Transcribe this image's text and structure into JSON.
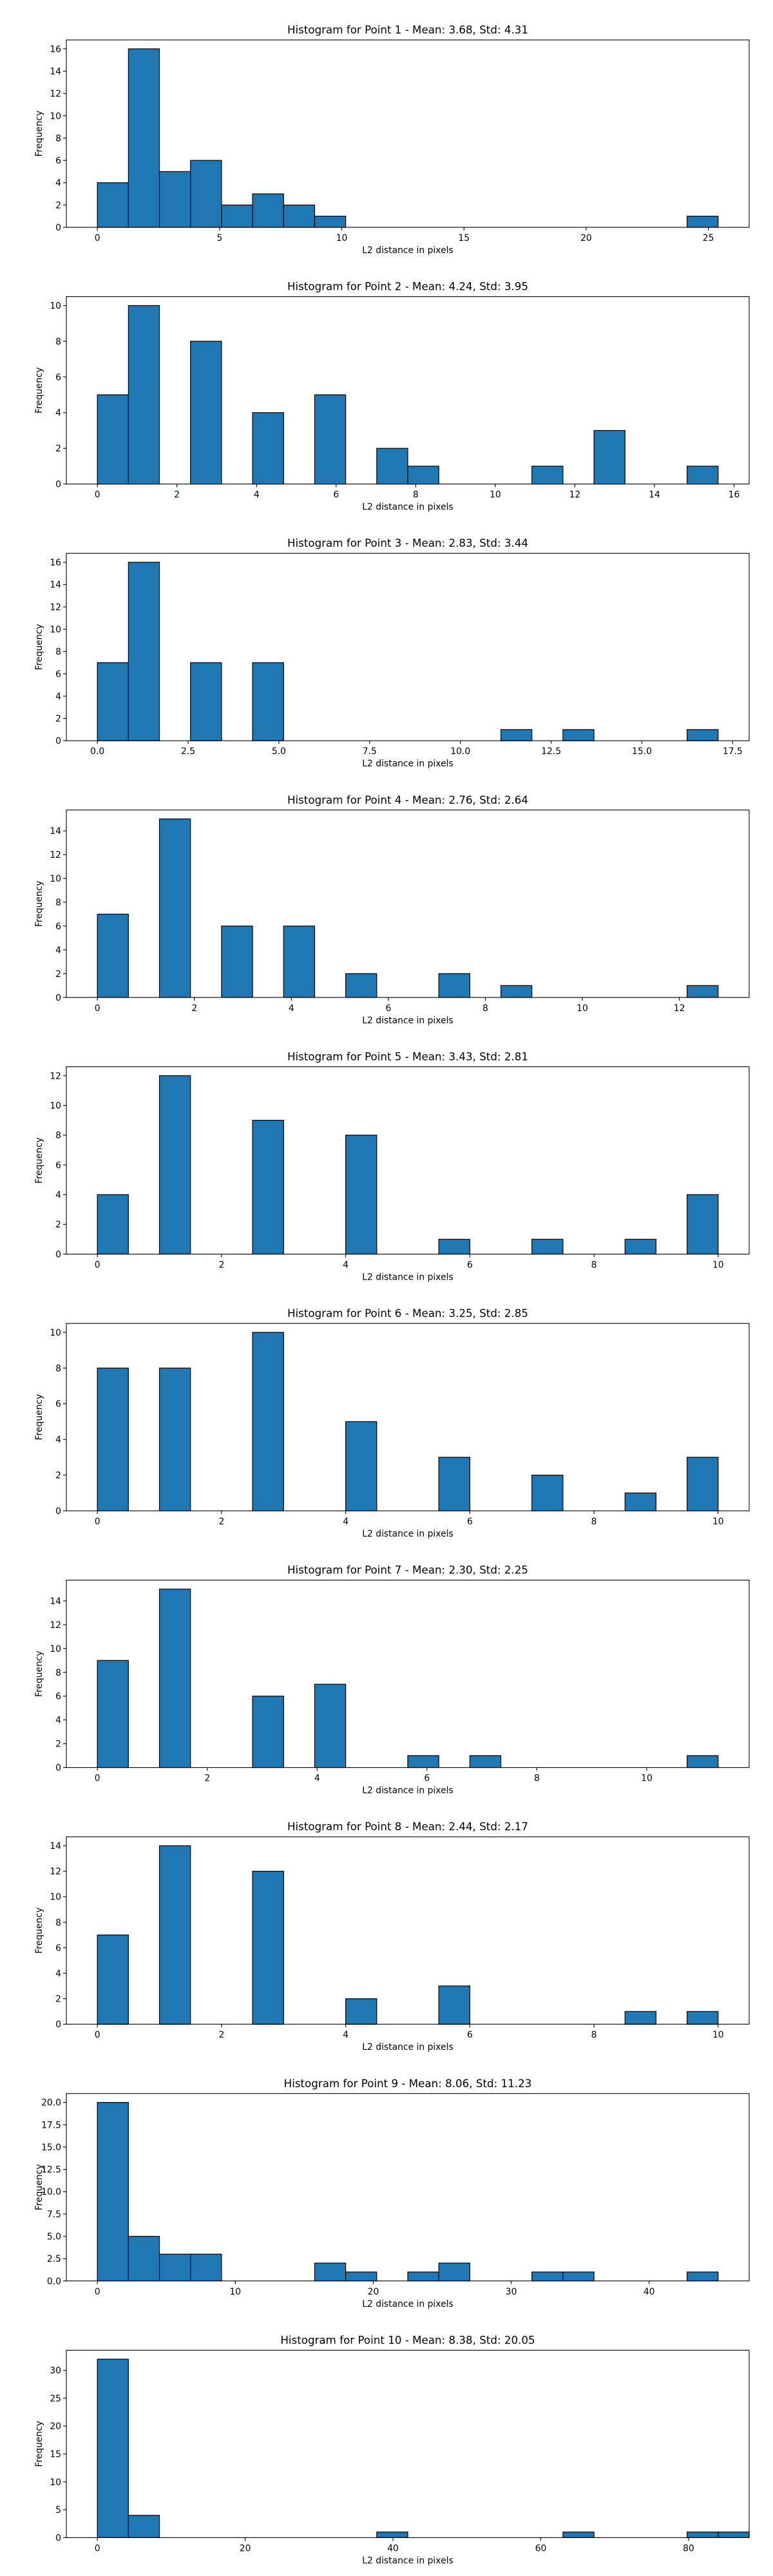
{
  "chart_data": [
    {
      "type": "bar",
      "title": "Histogram for Point 1 - Mean: 3.68, Std: 4.31",
      "xlabel": "L2 distance in pixels",
      "ylabel": "Frequency",
      "bin_width": 1.27,
      "xlim": [
        -1.27,
        26.67
      ],
      "ylim": [
        0,
        16.8
      ],
      "xticks": [
        0,
        5,
        10,
        15,
        20,
        25
      ],
      "yticks": [
        0,
        2,
        4,
        6,
        8,
        10,
        12,
        14,
        16
      ],
      "bins": [
        {
          "x0": 0.0,
          "count": 4
        },
        {
          "x0": 1.27,
          "count": 16
        },
        {
          "x0": 2.54,
          "count": 5
        },
        {
          "x0": 3.81,
          "count": 6
        },
        {
          "x0": 5.08,
          "count": 2
        },
        {
          "x0": 6.35,
          "count": 3
        },
        {
          "x0": 7.62,
          "count": 2
        },
        {
          "x0": 8.89,
          "count": 1
        },
        {
          "x0": 24.13,
          "count": 1
        }
      ]
    },
    {
      "type": "bar",
      "title": "Histogram for Point 2 - Mean: 4.24, Std: 3.95",
      "xlabel": "L2 distance in pixels",
      "ylabel": "Frequency",
      "bin_width": 0.78,
      "xlim": [
        -0.78,
        16.38
      ],
      "ylim": [
        0,
        10.5
      ],
      "xticks": [
        0,
        2,
        4,
        6,
        8,
        10,
        12,
        14,
        16
      ],
      "yticks": [
        0,
        2,
        4,
        6,
        8,
        10
      ],
      "bins": [
        {
          "x0": 0.0,
          "count": 5
        },
        {
          "x0": 0.78,
          "count": 10
        },
        {
          "x0": 2.34,
          "count": 8
        },
        {
          "x0": 3.9,
          "count": 4
        },
        {
          "x0": 5.46,
          "count": 5
        },
        {
          "x0": 7.02,
          "count": 2
        },
        {
          "x0": 7.8,
          "count": 1
        },
        {
          "x0": 10.92,
          "count": 1
        },
        {
          "x0": 12.48,
          "count": 3
        },
        {
          "x0": 14.82,
          "count": 1
        }
      ]
    },
    {
      "type": "bar",
      "title": "Histogram for Point 3 - Mean: 2.83, Std: 3.44",
      "xlabel": "L2 distance in pixels",
      "ylabel": "Frequency",
      "bin_width": 0.855,
      "xlim": [
        -0.855,
        17.955
      ],
      "ylim": [
        0,
        16.8
      ],
      "xticks": [
        0.0,
        2.5,
        5.0,
        7.5,
        10.0,
        12.5,
        15.0,
        17.5
      ],
      "xtick_labels": [
        "0.0",
        "2.5",
        "5.0",
        "7.5",
        "10.0",
        "12.5",
        "15.0",
        "17.5"
      ],
      "yticks": [
        0,
        2,
        4,
        6,
        8,
        10,
        12,
        14,
        16
      ],
      "bins": [
        {
          "x0": 0.0,
          "count": 7
        },
        {
          "x0": 0.855,
          "count": 16
        },
        {
          "x0": 2.565,
          "count": 7
        },
        {
          "x0": 4.275,
          "count": 7
        },
        {
          "x0": 11.115,
          "count": 1
        },
        {
          "x0": 12.825,
          "count": 1
        },
        {
          "x0": 16.245,
          "count": 1
        }
      ]
    },
    {
      "type": "bar",
      "title": "Histogram for Point 4 - Mean: 2.76, Std: 2.64",
      "xlabel": "L2 distance in pixels",
      "ylabel": "Frequency",
      "bin_width": 0.64,
      "xlim": [
        -0.64,
        13.44
      ],
      "ylim": [
        0,
        15.75
      ],
      "xticks": [
        0,
        2,
        4,
        6,
        8,
        10,
        12
      ],
      "yticks": [
        0,
        2,
        4,
        6,
        8,
        10,
        12,
        14
      ],
      "bins": [
        {
          "x0": 0.0,
          "count": 7
        },
        {
          "x0": 1.28,
          "count": 15
        },
        {
          "x0": 2.56,
          "count": 6
        },
        {
          "x0": 3.84,
          "count": 6
        },
        {
          "x0": 5.12,
          "count": 2
        },
        {
          "x0": 7.04,
          "count": 2
        },
        {
          "x0": 8.32,
          "count": 1
        },
        {
          "x0": 12.16,
          "count": 1
        }
      ]
    },
    {
      "type": "bar",
      "title": "Histogram for Point 5 - Mean: 3.43, Std: 2.81",
      "xlabel": "L2 distance in pixels",
      "ylabel": "Frequency",
      "bin_width": 0.5,
      "xlim": [
        -0.5,
        10.5
      ],
      "ylim": [
        0,
        12.6
      ],
      "xticks": [
        0,
        2,
        4,
        6,
        8,
        10
      ],
      "yticks": [
        0,
        2,
        4,
        6,
        8,
        10,
        12
      ],
      "bins": [
        {
          "x0": 0.0,
          "count": 4
        },
        {
          "x0": 1.0,
          "count": 12
        },
        {
          "x0": 2.5,
          "count": 9
        },
        {
          "x0": 4.0,
          "count": 8
        },
        {
          "x0": 5.5,
          "count": 1
        },
        {
          "x0": 7.0,
          "count": 1
        },
        {
          "x0": 8.5,
          "count": 1
        },
        {
          "x0": 9.5,
          "count": 4
        }
      ]
    },
    {
      "type": "bar",
      "title": "Histogram for Point 6 - Mean: 3.25, Std: 2.85",
      "xlabel": "L2 distance in pixels",
      "ylabel": "Frequency",
      "bin_width": 0.5,
      "xlim": [
        -0.5,
        10.5
      ],
      "ylim": [
        0,
        10.5
      ],
      "xticks": [
        0,
        2,
        4,
        6,
        8,
        10
      ],
      "yticks": [
        0,
        2,
        4,
        6,
        8,
        10
      ],
      "bins": [
        {
          "x0": 0.0,
          "count": 8
        },
        {
          "x0": 1.0,
          "count": 8
        },
        {
          "x0": 2.5,
          "count": 10
        },
        {
          "x0": 4.0,
          "count": 5
        },
        {
          "x0": 5.5,
          "count": 3
        },
        {
          "x0": 7.0,
          "count": 2
        },
        {
          "x0": 8.5,
          "count": 1
        },
        {
          "x0": 9.5,
          "count": 3
        }
      ]
    },
    {
      "type": "bar",
      "title": "Histogram for Point 7 - Mean: 2.30, Std: 2.25",
      "xlabel": "L2 distance in pixels",
      "ylabel": "Frequency",
      "bin_width": 0.565,
      "xlim": [
        -0.565,
        11.865
      ],
      "ylim": [
        0,
        15.75
      ],
      "xticks": [
        0,
        2,
        4,
        6,
        8,
        10
      ],
      "yticks": [
        0,
        2,
        4,
        6,
        8,
        10,
        12,
        14
      ],
      "bins": [
        {
          "x0": 0.0,
          "count": 9
        },
        {
          "x0": 1.13,
          "count": 15
        },
        {
          "x0": 2.825,
          "count": 6
        },
        {
          "x0": 3.955,
          "count": 7
        },
        {
          "x0": 5.65,
          "count": 1
        },
        {
          "x0": 6.78,
          "count": 1
        },
        {
          "x0": 10.735,
          "count": 1
        }
      ]
    },
    {
      "type": "bar",
      "title": "Histogram for Point 8 - Mean: 2.44, Std: 2.17",
      "xlabel": "L2 distance in pixels",
      "ylabel": "Frequency",
      "bin_width": 0.5,
      "xlim": [
        -0.5,
        10.5
      ],
      "ylim": [
        0,
        14.7
      ],
      "xticks": [
        0,
        2,
        4,
        6,
        8,
        10
      ],
      "yticks": [
        0,
        2,
        4,
        6,
        8,
        10,
        12,
        14
      ],
      "bins": [
        {
          "x0": 0.0,
          "count": 7
        },
        {
          "x0": 1.0,
          "count": 14
        },
        {
          "x0": 2.5,
          "count": 12
        },
        {
          "x0": 4.0,
          "count": 2
        },
        {
          "x0": 5.5,
          "count": 3
        },
        {
          "x0": 8.5,
          "count": 1
        },
        {
          "x0": 9.5,
          "count": 1
        }
      ]
    },
    {
      "type": "bar",
      "title": "Histogram for Point 9 - Mean: 8.06, Std: 11.23",
      "xlabel": "L2 distance in pixels",
      "ylabel": "Frequency",
      "bin_width": 2.25,
      "xlim": [
        -2.25,
        47.25
      ],
      "ylim": [
        0,
        21.0
      ],
      "xticks": [
        0,
        10,
        20,
        30,
        40
      ],
      "yticks": [
        0.0,
        2.5,
        5.0,
        7.5,
        10.0,
        12.5,
        15.0,
        17.5,
        20.0
      ],
      "ytick_labels": [
        "0.0",
        "2.5",
        "5.0",
        "7.5",
        "10.0",
        "12.5",
        "15.0",
        "17.5",
        "20.0"
      ],
      "bins": [
        {
          "x0": 0.0,
          "count": 20
        },
        {
          "x0": 2.25,
          "count": 5
        },
        {
          "x0": 4.5,
          "count": 3
        },
        {
          "x0": 6.75,
          "count": 3
        },
        {
          "x0": 15.75,
          "count": 2
        },
        {
          "x0": 18.0,
          "count": 1
        },
        {
          "x0": 22.5,
          "count": 1
        },
        {
          "x0": 24.75,
          "count": 2
        },
        {
          "x0": 31.5,
          "count": 1
        },
        {
          "x0": 33.75,
          "count": 1
        },
        {
          "x0": 42.75,
          "count": 1
        }
      ]
    },
    {
      "type": "bar",
      "title": "Histogram for Point 10 - Mean: 8.38, Std: 20.05",
      "xlabel": "L2 distance in pixels",
      "ylabel": "Frequency",
      "bin_width": 4.2,
      "xlim": [
        -4.2,
        88.2
      ],
      "ylim": [
        0,
        33.6
      ],
      "xticks": [
        0,
        20,
        40,
        60,
        80
      ],
      "yticks": [
        0,
        5,
        10,
        15,
        20,
        25,
        30
      ],
      "bins": [
        {
          "x0": 0.0,
          "count": 32
        },
        {
          "x0": 4.2,
          "count": 4
        },
        {
          "x0": 37.8,
          "count": 1
        },
        {
          "x0": 63.0,
          "count": 1
        },
        {
          "x0": 79.8,
          "count": 1
        },
        {
          "x0": 84.0,
          "count": 1
        }
      ]
    }
  ]
}
